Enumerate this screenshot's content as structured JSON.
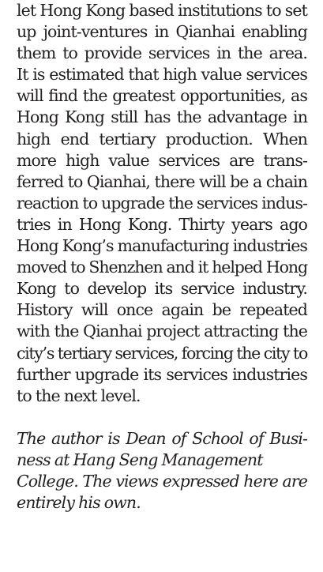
{
  "article": {
    "body_lines": [
      "let Hong Kong based institutions to set",
      "up joint-ventures in Qianhai enabling",
      "them to provide services in the area.",
      "It is estimated that high value services",
      "will find the greatest opportunities, as",
      "Hong Kong still has the advantage in",
      "high end tertiary production. When",
      "more high value services are trans-",
      "ferred to Qianhai, there will be a chain",
      "reaction to upgrade the services indus-",
      "tries in Hong Kong. Thirty years ago",
      "Hong Kong’s manufacturing industries",
      "moved to Shenzhen and it helped Hong",
      "Kong to develop its service industry.",
      "History will once again be repeated",
      "with the Qianhai project attracting the",
      "city’s tertiary services, forcing the city to",
      "further upgrade its services industries",
      "to the next level."
    ],
    "author_note_lines": [
      "The author is Dean of School of Busi-",
      "ness at Hang Seng Management",
      "College. The views expressed here are",
      "entirely his own."
    ]
  }
}
